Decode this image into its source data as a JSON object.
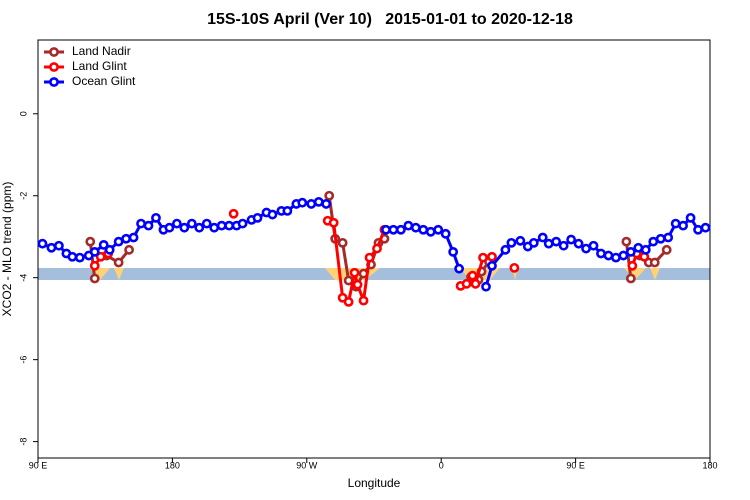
{
  "chart_data": {
    "type": "line",
    "title": "15S-10S April (Ver 10)   2015-01-01 to 2020-12-18",
    "xlabel": "Longitude",
    "ylabel": "XCO2 - MLO trend (ppm)",
    "xlim": [
      90,
      540
    ],
    "ylim": [
      -8.4,
      1.8
    ],
    "xticks": [
      {
        "value": 90,
        "label": "90 E"
      },
      180,
      {
        "value": 270,
        "label": "90 W"
      },
      {
        "value": 360,
        "label": "0"
      },
      {
        "value": 450,
        "label": "90 E"
      },
      {
        "value": 540,
        "label": "180"
      }
    ],
    "yticks": [
      -8,
      -6,
      -4,
      -2,
      0
    ],
    "legend": "upper left",
    "series": [
      {
        "name": "Land Nadir",
        "color": "#a52a2a",
        "x": [
          125,
          128,
          131,
          136,
          144,
          151,
          200,
          285,
          289,
          294,
          298,
          303,
          308,
          313,
          318,
          322,
          350,
          380,
          385,
          387,
          392,
          440,
          484,
          487,
          490,
          493,
          499,
          503,
          511
        ],
        "values": [
          -3.12,
          -4.02,
          null,
          -3.46,
          -3.63,
          -3.32,
          null,
          -2.0,
          -3.05,
          -3.15,
          -4.07,
          -4.22,
          -3.9,
          -3.68,
          -3.15,
          -3.05,
          null,
          -3.98,
          -4.05,
          -3.85,
          -3.61,
          null,
          -3.12,
          -4.02,
          null,
          -3.46,
          -3.63,
          -3.63,
          -3.32
        ]
      },
      {
        "name": "Land Glint",
        "color": "#ff0000",
        "x": [
          128,
          132,
          137,
          180,
          221,
          250,
          284,
          288,
          294,
          298,
          302,
          304,
          308,
          312,
          317,
          322,
          350,
          373,
          377,
          381,
          383,
          388,
          394,
          400,
          409,
          450,
          488,
          491,
          496
        ],
        "values": [
          -3.71,
          -3.49,
          -3.41,
          null,
          -2.44,
          null,
          -2.61,
          -2.66,
          -4.49,
          -4.59,
          -3.88,
          -4.17,
          -4.56,
          -3.51,
          -3.29,
          -2.83,
          null,
          -4.2,
          -4.15,
          -3.95,
          -4.15,
          -3.51,
          -3.49,
          null,
          -3.76,
          null,
          -3.71,
          -3.41,
          -3.49
        ]
      },
      {
        "name": "Ocean Glint",
        "color": "#0000ff",
        "x": [
          93,
          99,
          104,
          109,
          113,
          118,
          124,
          128,
          134,
          138,
          144,
          149,
          154,
          159,
          164,
          169,
          174,
          178,
          183,
          188,
          193,
          198,
          203,
          208,
          213,
          218,
          223,
          227,
          233,
          237,
          243,
          247,
          253,
          257,
          263,
          267,
          273,
          278,
          283,
          300,
          323,
          328,
          333,
          338,
          343,
          348,
          353,
          358,
          363,
          368,
          372,
          380,
          390,
          394,
          403,
          407,
          413,
          418,
          422,
          428,
          432,
          437,
          442,
          447,
          452,
          457,
          462,
          467,
          472,
          477,
          482,
          487,
          492,
          497,
          502,
          507,
          512,
          517,
          522,
          527,
          532,
          537
        ],
        "values": [
          -3.17,
          -3.27,
          -3.22,
          -3.41,
          -3.49,
          -3.51,
          -3.46,
          -3.37,
          -3.2,
          -3.32,
          -3.12,
          -3.05,
          -3.02,
          -2.68,
          -2.73,
          -2.54,
          -2.83,
          -2.78,
          -2.68,
          -2.78,
          -2.68,
          -2.78,
          -2.68,
          -2.78,
          -2.73,
          -2.73,
          -2.73,
          -2.68,
          -2.59,
          -2.54,
          -2.41,
          -2.46,
          -2.37,
          -2.37,
          -2.2,
          -2.17,
          -2.2,
          -2.15,
          -2.2,
          null,
          -2.83,
          -2.83,
          -2.83,
          -2.73,
          -2.78,
          -2.83,
          -2.88,
          -2.83,
          -2.93,
          -3.37,
          -3.78,
          null,
          -4.22,
          -3.71,
          -3.32,
          -3.15,
          -3.1,
          -3.24,
          -3.15,
          -3.02,
          -3.17,
          -3.12,
          -3.22,
          -3.07,
          -3.17,
          -3.29,
          -3.22,
          -3.41,
          -3.46,
          -3.51,
          -3.46,
          -3.37,
          -3.27,
          -3.32,
          -3.12,
          -3.05,
          -3.02,
          -2.68,
          -2.73,
          -2.54,
          -2.83,
          -2.78
        ]
      }
    ]
  }
}
